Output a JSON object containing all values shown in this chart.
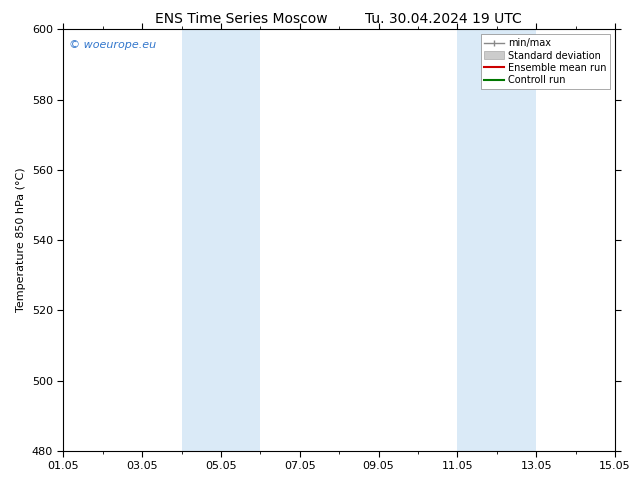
{
  "title_left": "ENS Time Series Moscow",
  "title_right": "Tu. 30.04.2024 19 UTC",
  "ylabel": "Temperature 850 hPa (°C)",
  "ylim": [
    480,
    600
  ],
  "yticks": [
    480,
    500,
    520,
    540,
    560,
    580,
    600
  ],
  "xlim": [
    0,
    14
  ],
  "xtick_positions": [
    0,
    2,
    4,
    6,
    8,
    10,
    12,
    14
  ],
  "xtick_labels": [
    "01.05",
    "03.05",
    "05.05",
    "07.05",
    "09.05",
    "11.05",
    "13.05",
    "15.05"
  ],
  "bg_color": "#ffffff",
  "plot_bg_color": "#ffffff",
  "shaded_bands": [
    {
      "x_start": 3.0,
      "x_end": 5.0,
      "color": "#daeaf7"
    },
    {
      "x_start": 10.0,
      "x_end": 12.0,
      "color": "#daeaf7"
    }
  ],
  "watermark_text": "© woeurope.eu",
  "watermark_color": "#3377cc",
  "legend_entries": [
    {
      "label": "min/max",
      "color": "#888888",
      "lw": 1.0
    },
    {
      "label": "Standard deviation",
      "color": "#cccccc",
      "lw": 5
    },
    {
      "label": "Ensemble mean run",
      "color": "#cc0000",
      "lw": 1.5
    },
    {
      "label": "Controll run",
      "color": "#007700",
      "lw": 1.5
    }
  ],
  "tick_color": "#000000",
  "axis_label_fontsize": 8,
  "tick_fontsize": 8,
  "title_fontsize": 10,
  "watermark_fontsize": 8,
  "legend_fontsize": 7
}
